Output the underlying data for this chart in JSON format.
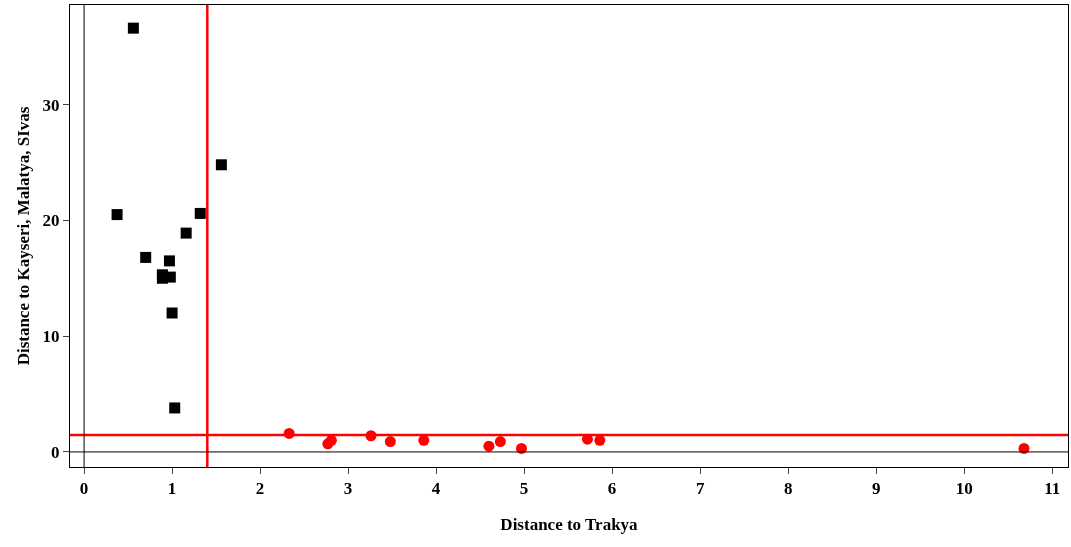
{
  "chart_data": {
    "type": "scatter",
    "xlabel": "Distance to Trakya",
    "ylabel": "Distance to Kayseri, Malatya, SIvas",
    "xlim": [
      -0.16,
      11.18
    ],
    "ylim": [
      -1.3,
      38.6
    ],
    "xticks": [
      0,
      1,
      2,
      3,
      4,
      5,
      6,
      7,
      8,
      9,
      10,
      11
    ],
    "yticks": [
      0,
      10,
      20,
      30
    ],
    "grid": false,
    "series": [
      {
        "color": "#000000",
        "marker": "square",
        "x": [
          0.56,
          0.375,
          1.56,
          1.32,
          1.16,
          0.7,
          0.97,
          0.89,
          0.89,
          0.98,
          1.0,
          1.03
        ],
        "values": [
          36.6,
          20.5,
          24.8,
          20.6,
          18.9,
          16.8,
          16.5,
          15.3,
          15.0,
          15.1,
          12.0,
          3.8
        ]
      },
      {
        "color": "#ff0000",
        "marker": "circle",
        "x": [
          2.33,
          2.77,
          2.81,
          3.26,
          3.48,
          3.86,
          4.6,
          4.73,
          4.97,
          5.72,
          5.86,
          10.68
        ],
        "values": [
          1.6,
          0.7,
          1.0,
          1.4,
          0.9,
          1.0,
          0.5,
          0.9,
          0.3,
          1.1,
          1.0,
          0.3
        ]
      }
    ],
    "ref_lines": [
      {
        "axis": "x",
        "value": 1.4,
        "color": "#ff0000"
      },
      {
        "axis": "y",
        "value": 1.47,
        "color": "#ff0000"
      },
      {
        "axis": "x",
        "value": 0,
        "color": "#000000"
      },
      {
        "axis": "y",
        "value": 0,
        "color": "#000000"
      }
    ]
  }
}
